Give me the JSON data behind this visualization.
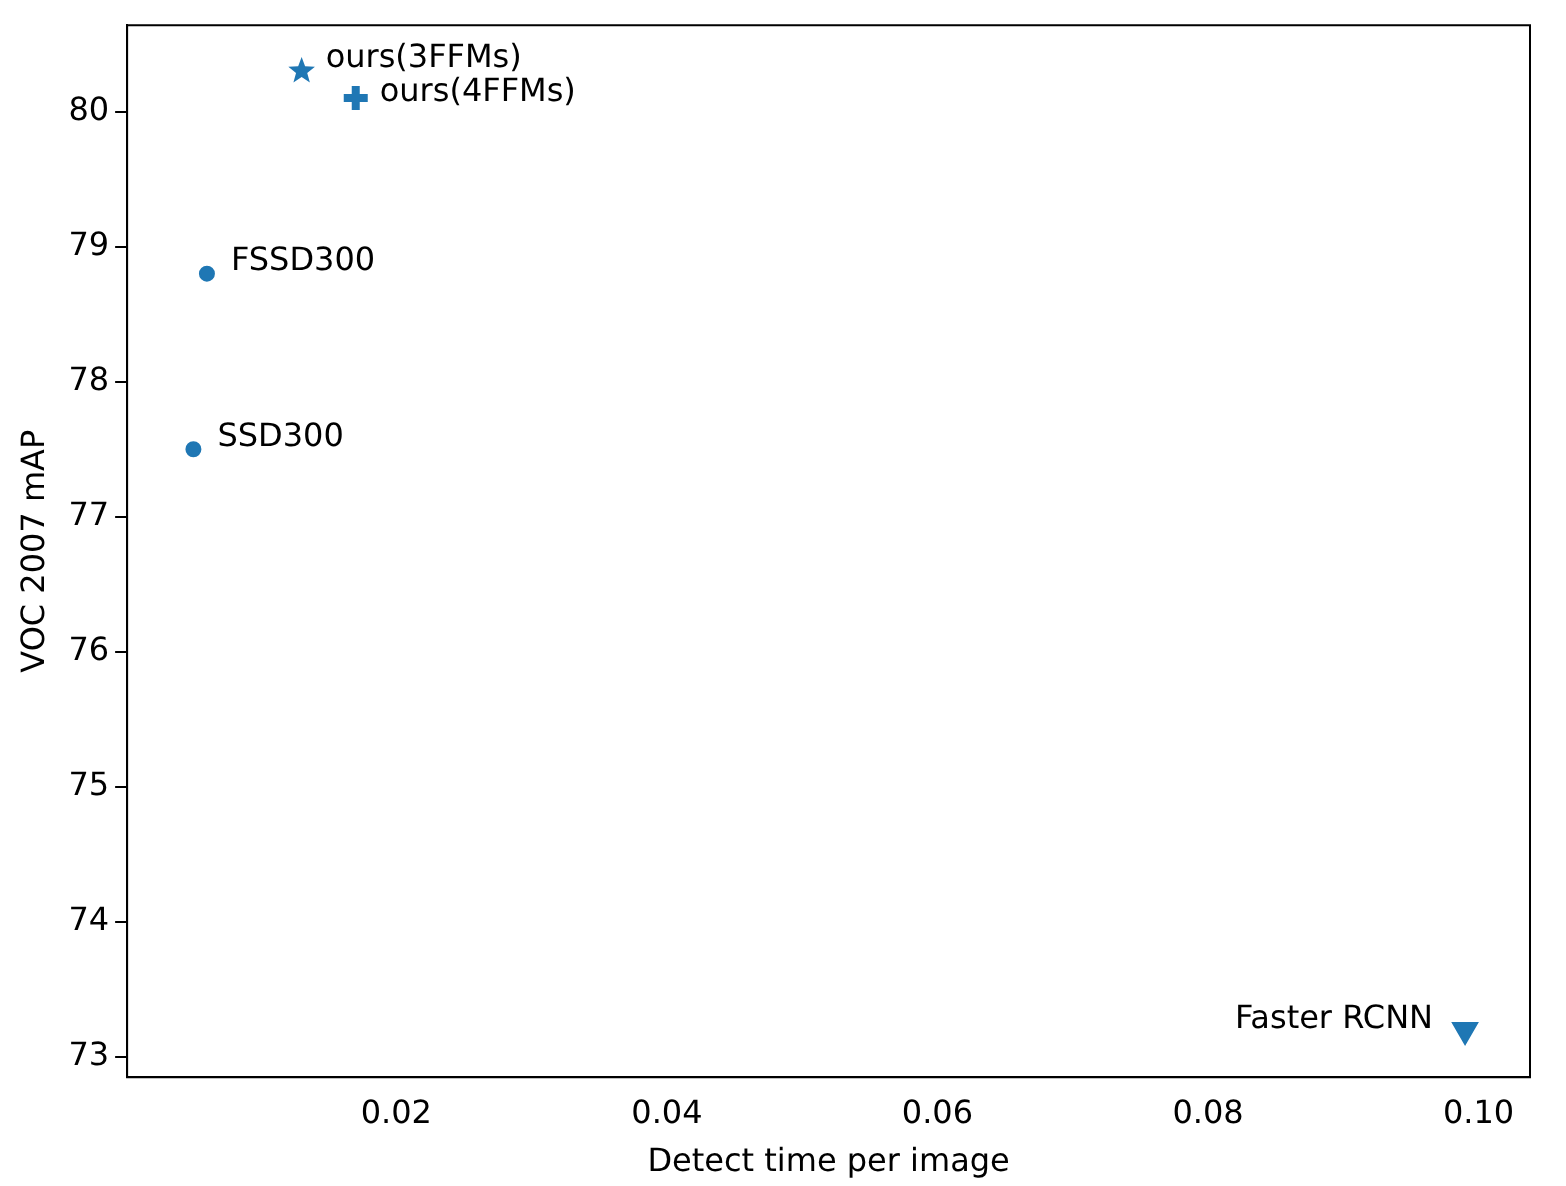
{
  "chart_data": {
    "type": "scatter",
    "xlabel": "Detect time per image",
    "ylabel": "VOC 2007 mAP",
    "xlim": [
      0.0001,
      0.1038
    ],
    "ylim": [
      72.85,
      80.64
    ],
    "xticks": [
      0.02,
      0.04,
      0.06,
      0.08,
      {
        "value": 0.1,
        "label": "0.10"
      }
    ],
    "yticks": [
      73,
      74,
      75,
      76,
      77,
      78,
      79,
      80
    ],
    "grid": false,
    "legend": false,
    "series": [
      {
        "color": "#1f77b4",
        "marker": "circle",
        "x": [
          0.005
        ],
        "values": [
          77.5
        ]
      },
      {
        "color": "#1f77b4",
        "marker": "circle",
        "x": [
          0.006
        ],
        "values": [
          78.8
        ]
      },
      {
        "color": "#1f77b4",
        "marker": "star",
        "x": [
          0.013
        ],
        "values": [
          80.3
        ]
      },
      {
        "color": "#1f77b4",
        "marker": "cross",
        "x": [
          0.017
        ],
        "values": [
          80.1
        ]
      },
      {
        "color": "#1f77b4",
        "marker": "triangle",
        "x": [
          0.099
        ],
        "values": [
          73.2
        ]
      }
    ],
    "annotations": [
      {
        "text": "SSD300",
        "x": 0.005,
        "y": 77.5
      },
      {
        "text": "FSSD300",
        "x": 0.006,
        "y": 78.8
      },
      {
        "text": "ours(3FFMs)",
        "x": 0.013,
        "y": 80.3
      },
      {
        "text": "ours(4FFMs)",
        "x": 0.017,
        "y": 80.05
      },
      {
        "text": "Faster RCNN",
        "x": 0.099,
        "y": 73.2
      }
    ]
  }
}
